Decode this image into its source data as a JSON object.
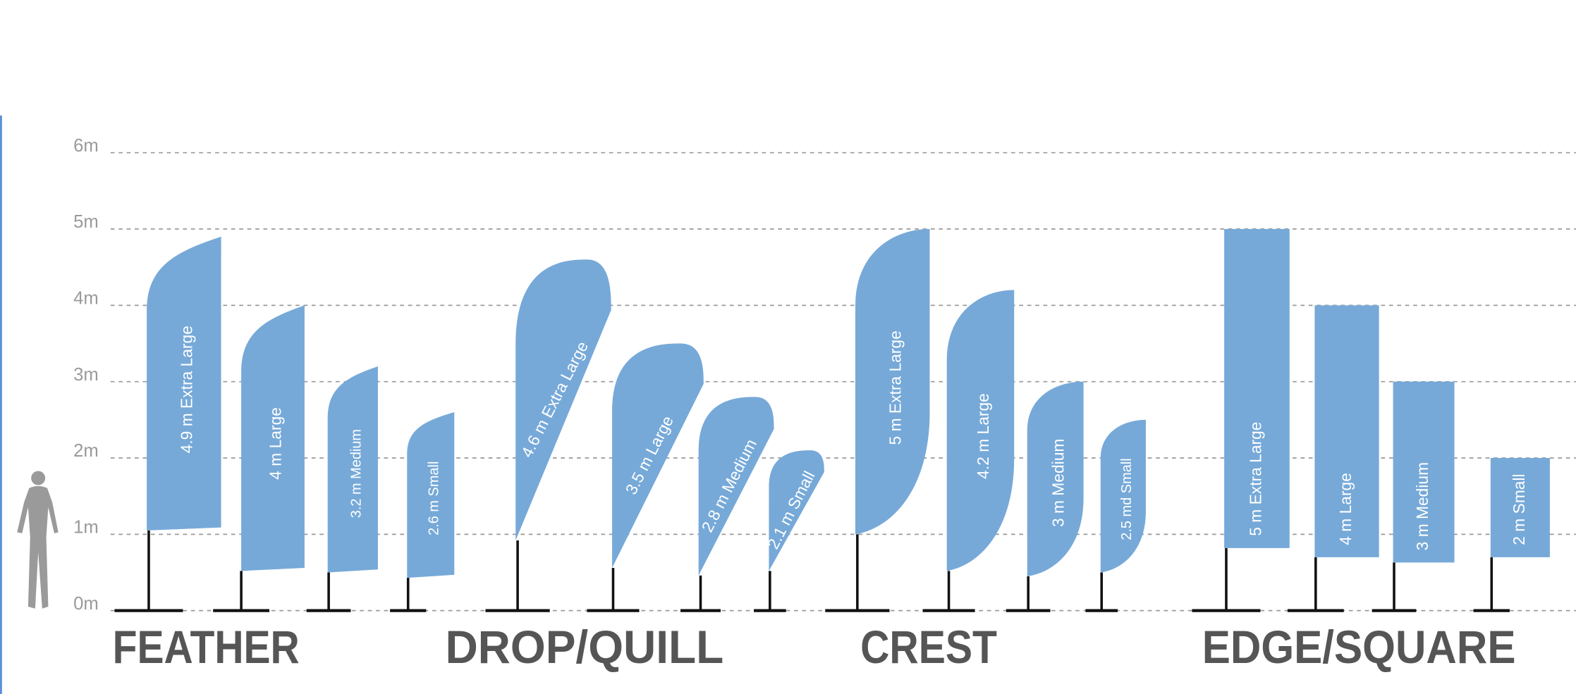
{
  "chart_data": {
    "type": "flag",
    "ylim": [
      0,
      6
    ],
    "yticks": [
      {
        "value": 0,
        "label": "0m"
      },
      {
        "value": 1,
        "label": "1m"
      },
      {
        "value": 2,
        "label": "2m"
      },
      {
        "value": 3,
        "label": "3m"
      },
      {
        "value": 4,
        "label": "4m"
      },
      {
        "value": 5,
        "label": "5m"
      },
      {
        "value": 6,
        "label": "6m"
      }
    ],
    "grid": true,
    "color": "#76a9d8",
    "groups": [
      {
        "name": "FEATHER",
        "flags": [
          {
            "label": "4.9 m Extra Large",
            "value": 4.9
          },
          {
            "label": "4 m Large",
            "value": 4
          },
          {
            "label": "3.2 m Medium",
            "value": 3.2
          },
          {
            "label": "2.6 m Small",
            "value": 2.6
          }
        ]
      },
      {
        "name": "DROP/QUILL",
        "flags": [
          {
            "label": "4.6 m Extra Large",
            "value": 4.6
          },
          {
            "label": "3.5 m Large",
            "value": 3.5
          },
          {
            "label": "2.8 m Medium",
            "value": 2.8
          },
          {
            "label": "2.1 m Small",
            "value": 2.1
          }
        ]
      },
      {
        "name": "CREST",
        "flags": [
          {
            "label": "5 m Extra Large",
            "value": 5
          },
          {
            "label": "4.2 m Large",
            "value": 4.2
          },
          {
            "label": "3 m Medium",
            "value": 3
          },
          {
            "label": "2.5 md Small",
            "value": 2.5
          }
        ]
      },
      {
        "name": "EDGE/SQUARE",
        "flags": [
          {
            "label": "5 m Extra Large",
            "value": 5
          },
          {
            "label": "4 m Large",
            "value": 4
          },
          {
            "label": "3 m Medium",
            "value": 3
          },
          {
            "label": "2 m Small",
            "value": 2
          }
        ]
      }
    ]
  }
}
